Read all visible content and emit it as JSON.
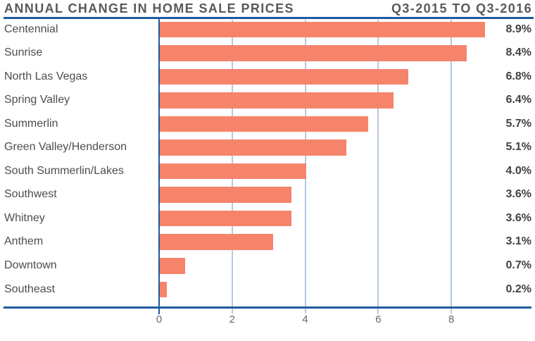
{
  "header": {
    "title": "ANNUAL CHANGE IN HOME SALE PRICES",
    "period": "Q3-2015 TO Q3-2016"
  },
  "colors": {
    "bar": "#F5846B",
    "axis_blue": "#1F5B9E",
    "gridline": "#B6C8DC",
    "title_text": "#58595B",
    "category_text": "#4D4D4F",
    "value_text": "#414143",
    "tick_text": "#6A6A6D"
  },
  "chart_data": {
    "type": "bar",
    "orientation": "horizontal",
    "title": "ANNUAL CHANGE IN HOME SALE PRICES",
    "subtitle": "Q3-2015 TO Q3-2016",
    "categories": [
      "Centennial",
      "Sunrise",
      "North Las Vegas",
      "Spring Valley",
      "Summerlin",
      "Green Valley/Henderson",
      "South Summerlin/Lakes",
      "Southwest",
      "Whitney",
      "Anthem",
      "Downtown",
      "Southeast"
    ],
    "values": [
      8.9,
      8.4,
      6.8,
      6.4,
      5.7,
      5.1,
      4.0,
      3.6,
      3.6,
      3.1,
      0.7,
      0.2
    ],
    "value_labels": [
      "8.9%",
      "8.4%",
      "6.8%",
      "6.4%",
      "5.7%",
      "5.1%",
      "4.0%",
      "3.6%",
      "3.6%",
      "3.1%",
      "0.7%",
      "0.2%"
    ],
    "xlabel": "",
    "ylabel": "",
    "x_ticks": [
      0,
      2,
      4,
      6,
      8
    ],
    "x_tick_labels": [
      "0",
      "2",
      "4",
      "6",
      "8"
    ],
    "xlim": [
      0,
      10.2
    ],
    "grid": true,
    "legend": false,
    "unit": "percent"
  }
}
